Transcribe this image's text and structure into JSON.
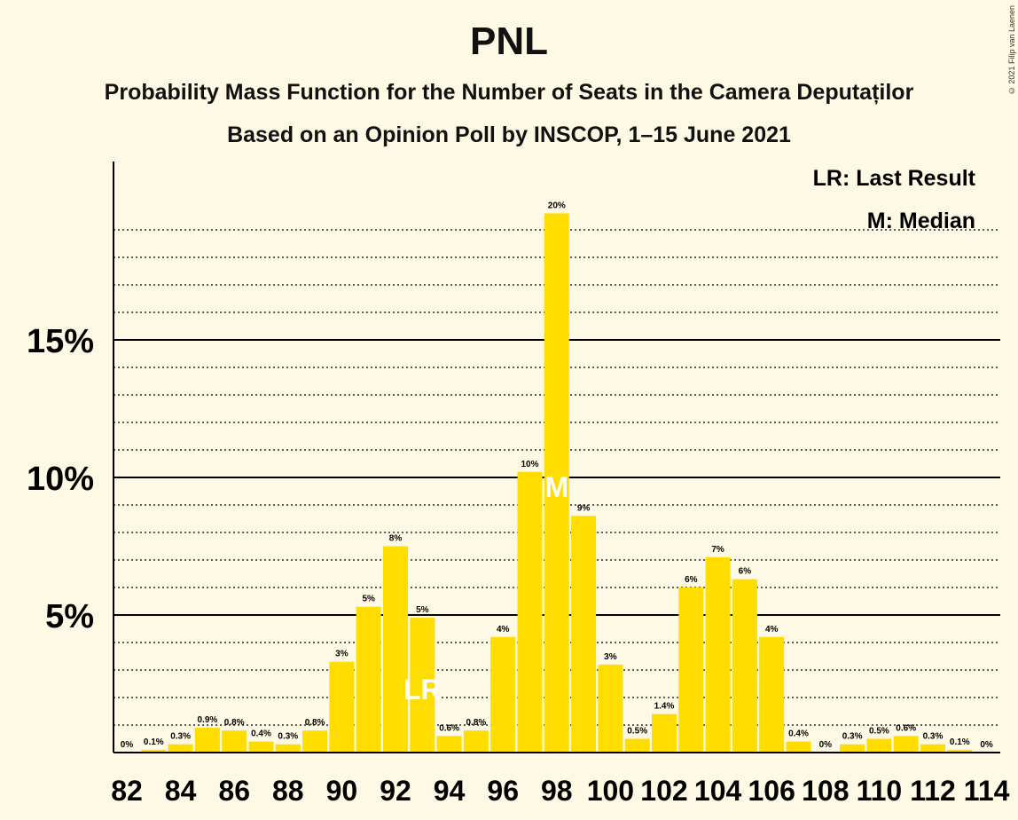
{
  "title": "PNL",
  "subtitle": "Probability Mass Function for the Number of Seats in the Camera Deputaților",
  "subtitle2": "Based on an Opinion Poll by INSCOP, 1–15 June 2021",
  "copyright": "© 2021 Filip van Laenen",
  "legend": {
    "last_result": "LR: Last Result",
    "median": "M: Median"
  },
  "colors": {
    "bar": "#ffdd00",
    "background": "#fef9e4"
  },
  "chart_data": {
    "type": "bar",
    "x": [
      82,
      83,
      84,
      85,
      86,
      87,
      88,
      89,
      90,
      91,
      92,
      93,
      94,
      95,
      96,
      97,
      98,
      99,
      100,
      101,
      102,
      103,
      104,
      105,
      106,
      107,
      108,
      109,
      110,
      111,
      112,
      113,
      114
    ],
    "values": [
      0,
      0.1,
      0.3,
      0.9,
      0.8,
      0.4,
      0.3,
      0.8,
      3.3,
      5.3,
      7.5,
      4.9,
      0.6,
      0.8,
      4.2,
      10.2,
      19.6,
      8.6,
      3.2,
      0.5,
      1.4,
      6.0,
      7.1,
      6.3,
      4.2,
      0.4,
      0,
      0.3,
      0.5,
      0.6,
      0.3,
      0.1,
      0
    ],
    "value_labels": [
      "0%",
      "0.1%",
      "0.3%",
      "0.9%",
      "0.8%",
      "0.4%",
      "0.3%",
      "0.8%",
      "3%",
      "5%",
      "8%",
      "5%",
      "0.6%",
      "0.8%",
      "4%",
      "10%",
      "20%",
      "9%",
      "3%",
      "0.5%",
      "1.4%",
      "6%",
      "7%",
      "6%",
      "4%",
      "0.4%",
      "0%",
      "0.3%",
      "0.5%",
      "0.6%",
      "0.3%",
      "0.1%",
      "0%"
    ],
    "x_tick_labels": [
      "82",
      "84",
      "86",
      "88",
      "90",
      "92",
      "94",
      "96",
      "98",
      "100",
      "102",
      "104",
      "106",
      "108",
      "110",
      "112",
      "114"
    ],
    "y_ticks": [
      5,
      10,
      15
    ],
    "y_tick_labels": [
      "5%",
      "10%",
      "15%"
    ],
    "ylim": [
      0,
      21
    ],
    "last_result_seat": 93,
    "last_result_marker": "LR",
    "median_seat": 98,
    "median_marker": "M",
    "grid": "solid major lines at 5% steps, dotted minor lines at 1% steps"
  }
}
